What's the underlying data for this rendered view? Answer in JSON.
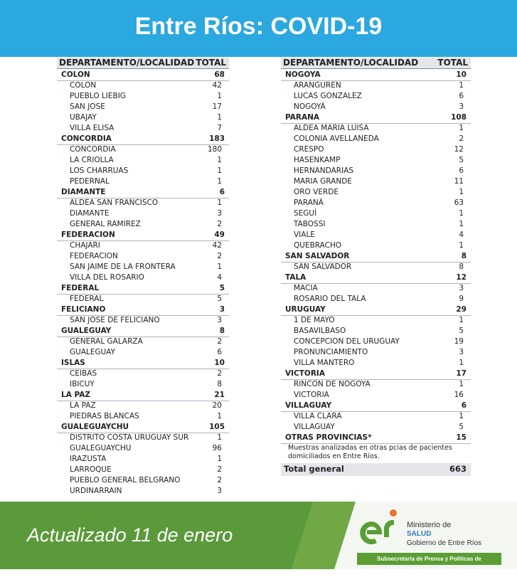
{
  "header": {
    "title": "Entre Ríos: COVID-19"
  },
  "tables": [
    {
      "columns": [
        "DEPARTAMENTO/LOCALIDAD",
        "TOTAL"
      ],
      "departments": [
        {
          "name": "COLON",
          "total": 68,
          "localities": [
            {
              "name": "COLON",
              "total": 42
            },
            {
              "name": "PUEBLO LIEBIG",
              "total": 1
            },
            {
              "name": "SAN JOSE",
              "total": 17
            },
            {
              "name": "UBAJAY",
              "total": 1
            },
            {
              "name": "VILLA ELISA",
              "total": 7
            }
          ]
        },
        {
          "name": "CONCORDIA",
          "total": 183,
          "localities": [
            {
              "name": "CONCORDIA",
              "total": 180
            },
            {
              "name": "LA CRIOLLA",
              "total": 1
            },
            {
              "name": "LOS CHARRUAS",
              "total": 1
            },
            {
              "name": "PEDERNAL",
              "total": 1
            }
          ]
        },
        {
          "name": "DIAMANTE",
          "total": 6,
          "localities": [
            {
              "name": "ALDEA SAN FRANCISCO",
              "total": 1
            },
            {
              "name": "DIAMANTE",
              "total": 3
            },
            {
              "name": "GENERAL RAMIREZ",
              "total": 2
            }
          ]
        },
        {
          "name": "FEDERACION",
          "total": 49,
          "localities": [
            {
              "name": "CHAJARI",
              "total": 42
            },
            {
              "name": "FEDERACION",
              "total": 2
            },
            {
              "name": "SAN JAIME DE LA FRONTERA",
              "total": 1
            },
            {
              "name": "VILLA DEL ROSARIO",
              "total": 4
            }
          ]
        },
        {
          "name": "FEDERAL",
          "total": 5,
          "localities": [
            {
              "name": "FEDERAL",
              "total": 5
            }
          ]
        },
        {
          "name": "FELICIANO",
          "total": 3,
          "localities": [
            {
              "name": "SAN JOSE DE FELICIANO",
              "total": 3
            }
          ]
        },
        {
          "name": "GUALEGUAY",
          "total": 8,
          "localities": [
            {
              "name": "GENERAL GALARZA",
              "total": 2
            },
            {
              "name": "GUALEGUAY",
              "total": 6
            }
          ]
        },
        {
          "name": "ISLAS",
          "total": 10,
          "localities": [
            {
              "name": "CEIBAS",
              "total": 2
            },
            {
              "name": "IBICUY",
              "total": 8
            }
          ]
        },
        {
          "name": "LA PAZ",
          "total": 21,
          "localities": [
            {
              "name": "LA PAZ",
              "total": 20
            },
            {
              "name": "PIEDRAS BLANCAS",
              "total": 1
            }
          ]
        },
        {
          "name": "GUALEGUAYCHU",
          "total": 105,
          "localities": [
            {
              "name": "DISTRITO COSTA URUGUAY SUR",
              "total": 1
            },
            {
              "name": "GUALEGUAYCHU",
              "total": 96
            },
            {
              "name": "IRAZUSTA",
              "total": 1
            },
            {
              "name": "LARROQUE",
              "total": 2
            },
            {
              "name": "PUEBLO GENERAL BELGRANO",
              "total": 2
            },
            {
              "name": "URDINARRAIN",
              "total": 3
            }
          ]
        }
      ]
    },
    {
      "columns": [
        "DEPARTAMENTO/LOCALIDAD",
        "TOTAL"
      ],
      "departments": [
        {
          "name": "NOGOYA",
          "total": 10,
          "localities": [
            {
              "name": "ARANGUREN",
              "total": 1
            },
            {
              "name": "LUCAS GONZALEZ",
              "total": 6
            },
            {
              "name": "NOGOYÁ",
              "total": 3
            }
          ]
        },
        {
          "name": "PARANA",
          "total": 108,
          "localities": [
            {
              "name": "ALDEA MARIA LUISA",
              "total": 1
            },
            {
              "name": "COLONIA AVELLANEDA",
              "total": 2
            },
            {
              "name": "CRESPO",
              "total": 12
            },
            {
              "name": "HASENKAMP",
              "total": 5
            },
            {
              "name": "HERNANDARIAS",
              "total": 6
            },
            {
              "name": "MARIA GRANDE",
              "total": 11
            },
            {
              "name": "ORO VERDE",
              "total": 1
            },
            {
              "name": "PARANÁ",
              "total": 63
            },
            {
              "name": "SEGUÍ",
              "total": 1
            },
            {
              "name": "TABOSSI",
              "total": 1
            },
            {
              "name": "VIALE",
              "total": 4
            },
            {
              "name": "QUEBRACHO",
              "total": 1
            }
          ]
        },
        {
          "name": "SAN SALVADOR",
          "total": 8,
          "localities": [
            {
              "name": "SAN SALVADOR",
              "total": 8
            }
          ]
        },
        {
          "name": "TALA",
          "total": 12,
          "localities": [
            {
              "name": "MACIA",
              "total": 3
            },
            {
              "name": "ROSARIO DEL TALA",
              "total": 9
            }
          ]
        },
        {
          "name": "URUGUAY",
          "total": 29,
          "localities": [
            {
              "name": "1 DE MAYO",
              "total": 1
            },
            {
              "name": "BASAVILBASO",
              "total": 5
            },
            {
              "name": "CONCEPCION DEL URUGUAY",
              "total": 19
            },
            {
              "name": "PRONUNCIAMIENTO",
              "total": 3
            },
            {
              "name": "VILLA MANTERO",
              "total": 1
            }
          ]
        },
        {
          "name": "VICTORIA",
          "total": 17,
          "localities": [
            {
              "name": "RINCON DE NOGOYA",
              "total": 1
            },
            {
              "name": "VICTORIA",
              "total": 16
            }
          ]
        },
        {
          "name": "VILLAGUAY",
          "total": 6,
          "localities": [
            {
              "name": "VILLA CLARA",
              "total": 1
            },
            {
              "name": "VILLAGUAY",
              "total": 5
            }
          ]
        },
        {
          "name": "OTRAS PROVINCIAS*",
          "total": 15,
          "localities": []
        }
      ],
      "note": "Muestras analizadas en otras pcias de pacientes domiciliados en Entre Ríos.",
      "total": {
        "label": "Total general",
        "value": 663
      }
    }
  ],
  "footer": {
    "updated": "Actualizado 11 de enero",
    "ministry": "Ministerio de",
    "salud": "SALUD",
    "government": "Gobierno de Entre Ríos",
    "secretariat": "Subsecretaría de Prensa y Políticas de Comunicación"
  }
}
